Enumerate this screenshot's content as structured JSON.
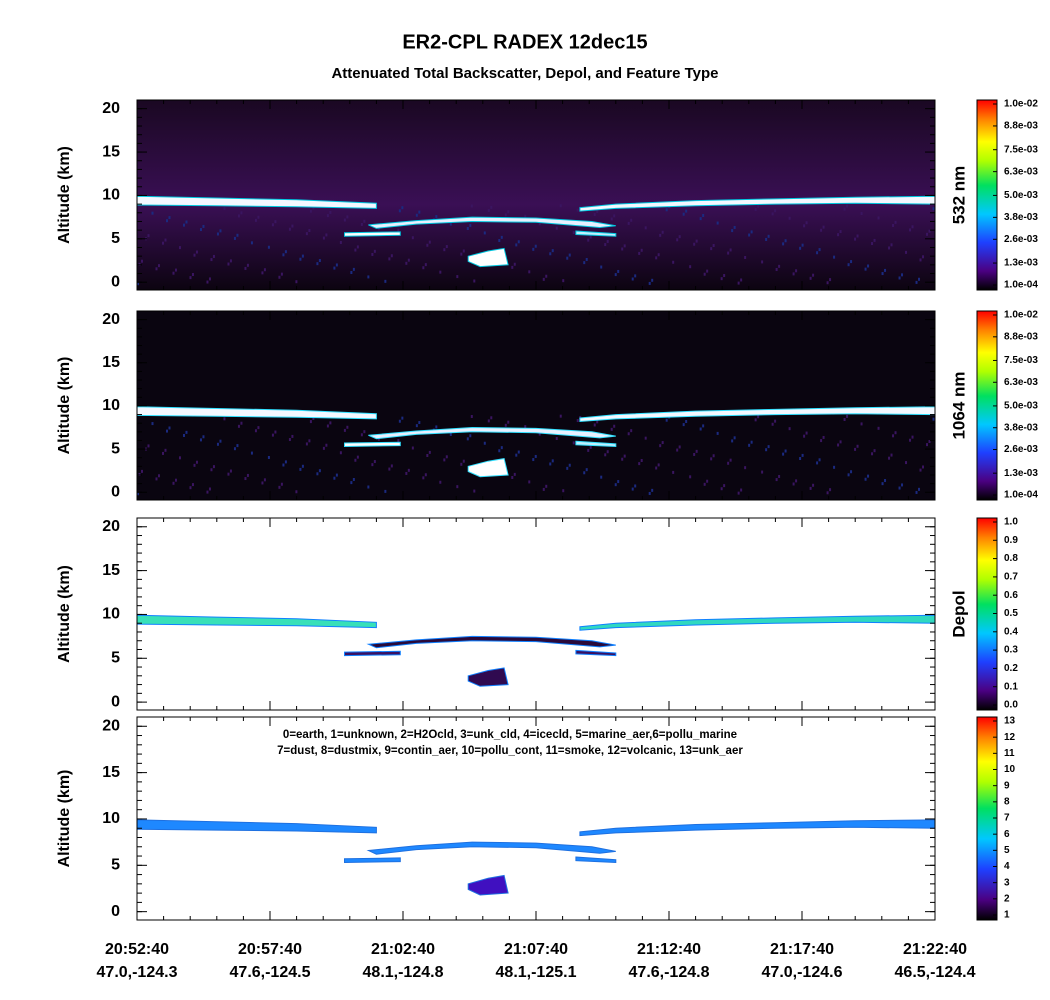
{
  "title": "ER2-CPL RADEX 12dec15",
  "subtitle": "Attenuated Total Backscatter, Depol, and Feature Type",
  "x_axis": {
    "times": [
      "20:52:40",
      "20:57:40",
      "21:02:40",
      "21:07:40",
      "21:12:40",
      "21:17:40",
      "21:22:40"
    ],
    "locations": [
      "47.0,-124.3",
      "47.6,-124.5",
      "48.1,-124.8",
      "48.1,-125.1",
      "47.6,-124.8",
      "47.0,-124.6",
      "46.5,-124.4"
    ]
  },
  "chart_data": [
    {
      "type": "heatmap",
      "ylabel": "Altitude (km)",
      "ylim": [
        -0.9,
        21
      ],
      "yticks": [
        0,
        5,
        10,
        15,
        20
      ],
      "colorbar_label": "532 nm",
      "clim": [
        0.0001,
        0.01
      ],
      "colorbar_ticks": [
        {
          "value": 0.0001,
          "label": "1.0e-04"
        },
        {
          "value": 0.0013,
          "label": "1.3e-03"
        },
        {
          "value": 0.0026,
          "label": "2.6e-03"
        },
        {
          "value": 0.0038,
          "label": "3.8e-03"
        },
        {
          "value": 0.005,
          "label": "5.0e-03"
        },
        {
          "value": 0.0063,
          "label": "6.3e-03"
        },
        {
          "value": 0.0075,
          "label": "7.5e-03"
        },
        {
          "value": 0.0088,
          "label": "8.8e-03"
        },
        {
          "value": 0.01,
          "label": "1.0e-02"
        }
      ]
    },
    {
      "type": "heatmap",
      "ylabel": "Altitude (km)",
      "ylim": [
        -0.9,
        21
      ],
      "yticks": [
        0,
        5,
        10,
        15,
        20
      ],
      "colorbar_label": "1064 nm",
      "clim": [
        0.0001,
        0.01
      ],
      "colorbar_ticks": [
        {
          "value": 0.0001,
          "label": "1.0e-04"
        },
        {
          "value": 0.0013,
          "label": "1.3e-03"
        },
        {
          "value": 0.0026,
          "label": "2.6e-03"
        },
        {
          "value": 0.0038,
          "label": "3.8e-03"
        },
        {
          "value": 0.005,
          "label": "5.0e-03"
        },
        {
          "value": 0.0063,
          "label": "6.3e-03"
        },
        {
          "value": 0.0075,
          "label": "7.5e-03"
        },
        {
          "value": 0.0088,
          "label": "8.8e-03"
        },
        {
          "value": 0.01,
          "label": "1.0e-02"
        }
      ]
    },
    {
      "type": "heatmap",
      "ylabel": "Altitude (km)",
      "ylim": [
        -0.9,
        21
      ],
      "yticks": [
        0,
        5,
        10,
        15,
        20
      ],
      "colorbar_label": "Depol",
      "clim": [
        0,
        1
      ],
      "colorbar_ticks": [
        {
          "value": 0,
          "label": "0.0"
        },
        0.1,
        0.2,
        0.3,
        0.4,
        0.5,
        0.6,
        0.7,
        0.8,
        0.9,
        {
          "value": 1,
          "label": "1.0"
        }
      ]
    },
    {
      "type": "heatmap",
      "ylabel": "Altitude (km)",
      "ylim": [
        -0.9,
        21
      ],
      "yticks": [
        0,
        5,
        10,
        15,
        20
      ],
      "clim": [
        1,
        13
      ],
      "colorbar_ticks": [
        1,
        2,
        3,
        4,
        5,
        6,
        7,
        8,
        9,
        10,
        11,
        12,
        13
      ],
      "annotation": [
        "0=earth, 1=unknown, 2=H2Ocld, 3=unk_cld, 4=icecld, 5=marine_aer,6=pollu_marine",
        "7=dust, 8=dustmix, 9=contin_aer, 10=pollu_cont, 11=smoke, 12=volcanic, 13=unk_aer"
      ]
    }
  ]
}
